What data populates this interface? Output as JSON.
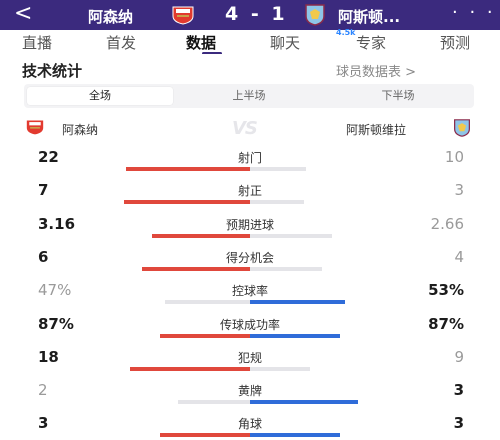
{
  "header": {
    "back_glyph": "<",
    "home_team": "阿森纳",
    "score": "4 - 1",
    "away_team": "阿斯顿...",
    "more_glyph": "· · ·",
    "home_crest_icon": "arsenal-crest-icon",
    "away_crest_icon": "aston-villa-crest-icon"
  },
  "tabs": {
    "items": [
      "直播",
      "首发",
      "数据",
      "聊天",
      "专家",
      "预测"
    ],
    "active": "数据",
    "chat_badge": "4.5k"
  },
  "stats_section": {
    "title": "技术统计",
    "player_link": "球员数据表 >",
    "segments": [
      "全场",
      "上半场",
      "下半场"
    ],
    "active_segment": "全场",
    "home_team": "阿森纳",
    "away_team": "阿斯顿维拉",
    "vs_text": "VS"
  },
  "colors": {
    "header_bg": "#3b2a7e",
    "home_bar": "#e0483c",
    "away_bar": "#2f6cd9",
    "lose_bar": "#e4e4e8",
    "arsenal_red": "#e23a2f",
    "villa_claret": "#8a2a4a",
    "villa_blue": "#8ec5e8"
  },
  "stats": [
    {
      "label": "射门",
      "home": "22",
      "away": "10",
      "home_share": 0.688
    },
    {
      "label": "射正",
      "home": "7",
      "away": "3",
      "home_share": 0.7
    },
    {
      "label": "预期进球",
      "home": "3.16",
      "away": "2.66",
      "home_share": 0.543
    },
    {
      "label": "得分机会",
      "home": "6",
      "away": "4",
      "home_share": 0.6
    },
    {
      "label": "控球率",
      "home": "47%",
      "away": "53%",
      "home_share": 0.47
    },
    {
      "label": "传球成功率",
      "home": "87%",
      "away": "87%",
      "home_share": 0.5
    },
    {
      "label": "犯规",
      "home": "18",
      "away": "9",
      "home_share": 0.667
    },
    {
      "label": "黄牌",
      "home": "2",
      "away": "3",
      "home_share": 0.4
    },
    {
      "label": "角球",
      "home": "3",
      "away": "3",
      "home_share": 0.5
    }
  ]
}
